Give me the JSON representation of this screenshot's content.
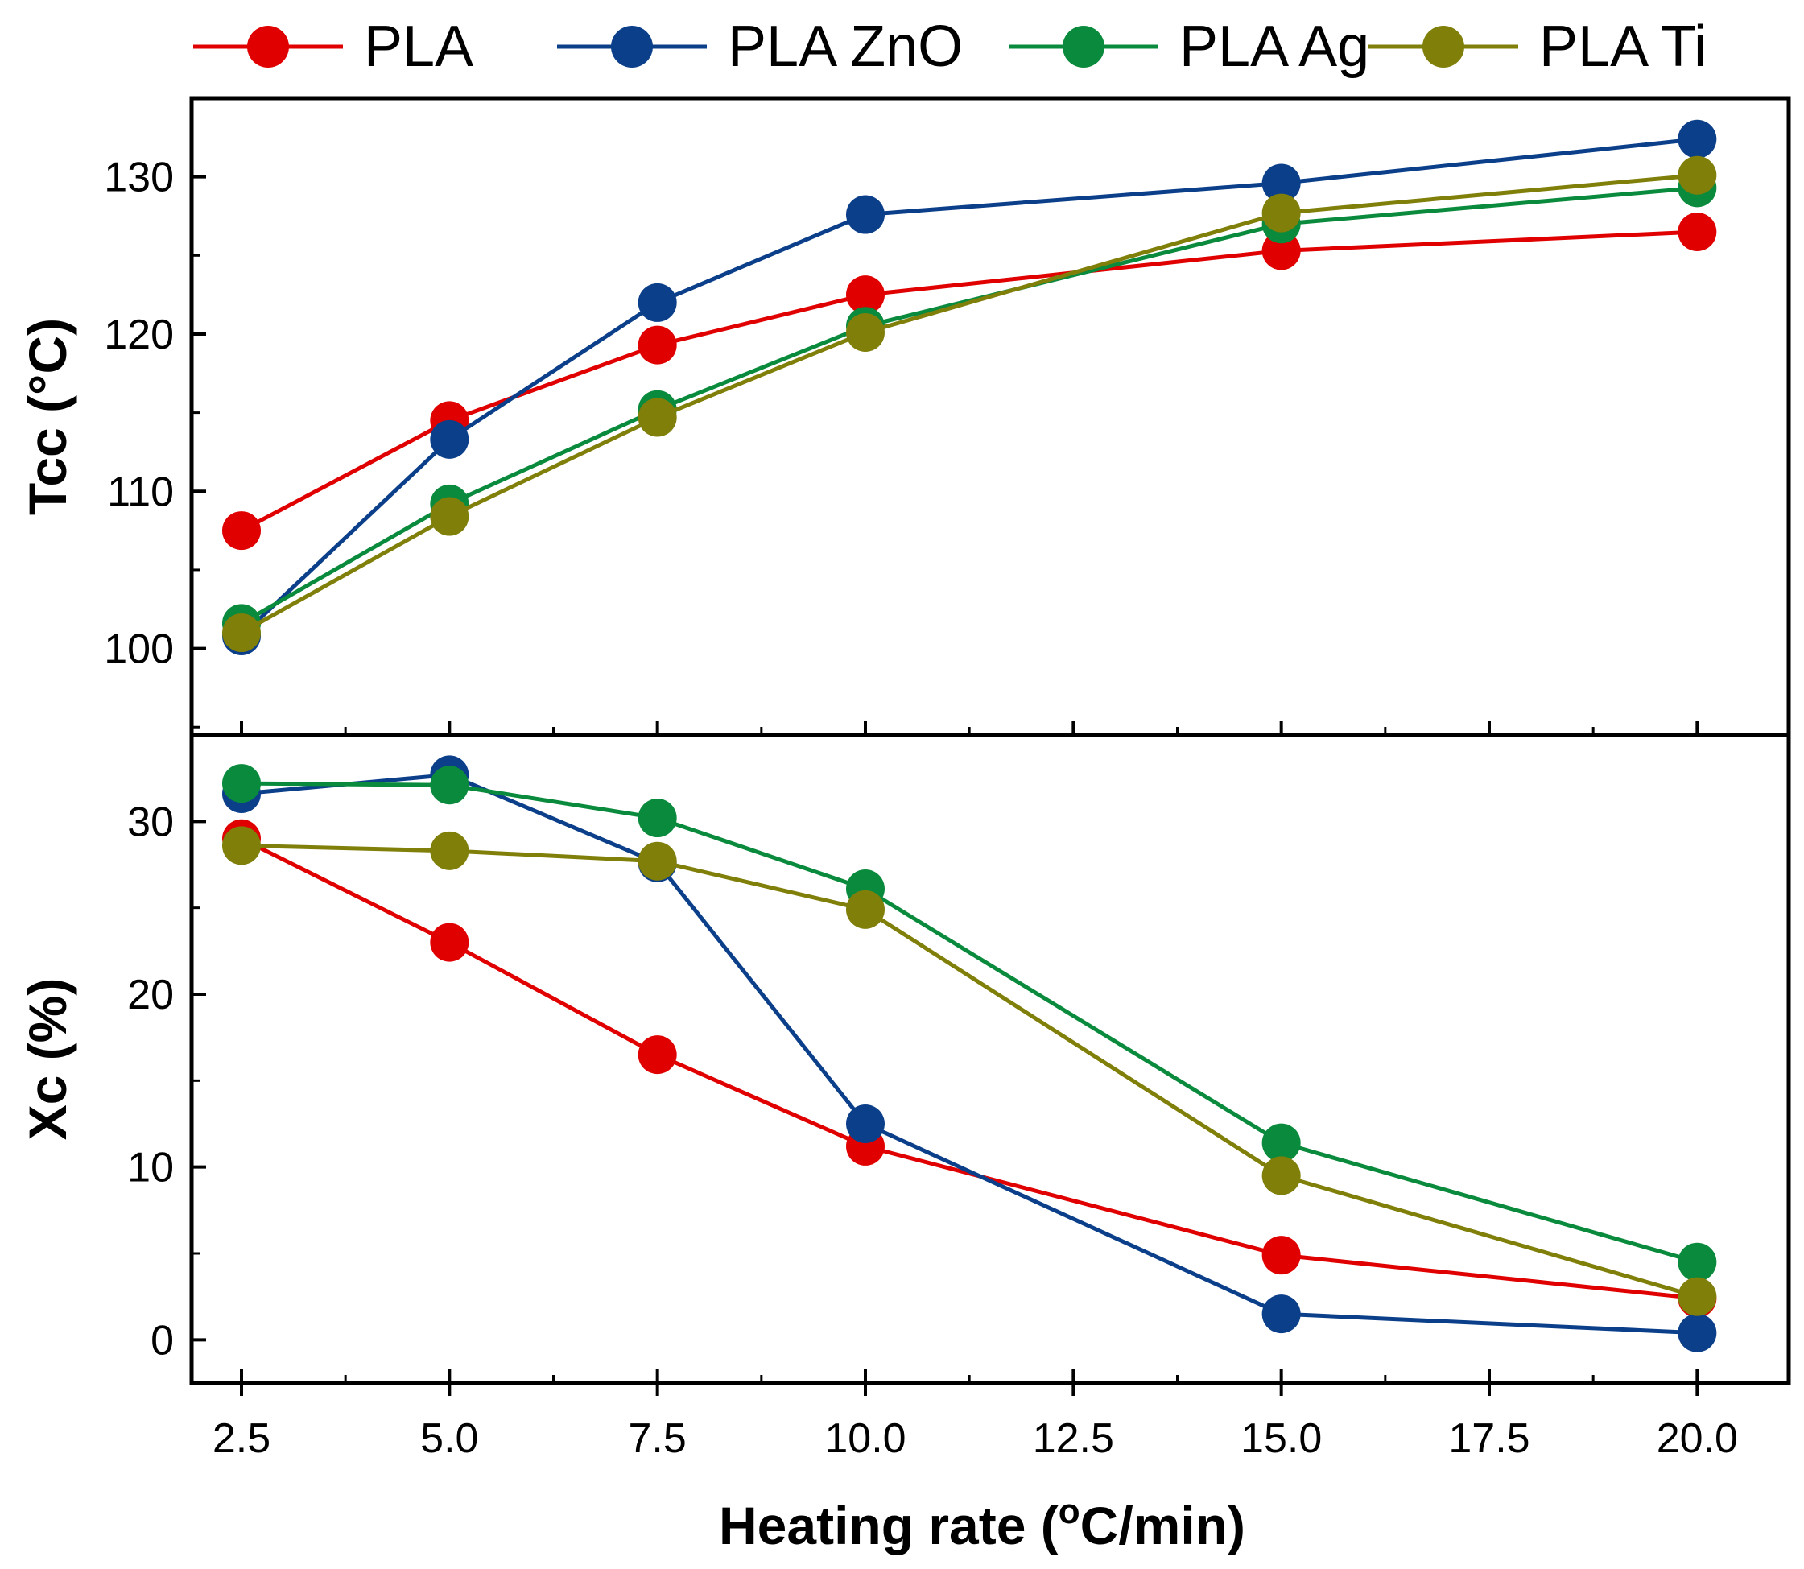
{
  "chart_data": {
    "type": "line",
    "shared_x": {
      "label_prefix": "Heating rate (",
      "label_degree": "o",
      "label_suffix": "C/min)",
      "range": [
        1.9,
        21.1
      ],
      "tick_labels": [
        "2.5",
        "5.0",
        "7.5",
        "10.0",
        "12.5",
        "15.0",
        "17.5",
        "20.0"
      ]
    },
    "x": [
      2.5,
      5.0,
      7.5,
      10.0,
      15.0,
      20.0
    ],
    "legend": {
      "position": "top",
      "entries": [
        {
          "name": "PLA",
          "color": "#e00000"
        },
        {
          "name": "PLA ZnO",
          "color": "#0b3f8a"
        },
        {
          "name": "PLA Ag",
          "color": "#0a8a3c"
        },
        {
          "name": "PLA Ti",
          "color": "#7f7f0a"
        }
      ]
    },
    "panels": [
      {
        "id": "tcc",
        "ylabel": "Tcc (°C)",
        "ylim": [
          94.5,
          135
        ],
        "yticks": [
          100,
          110,
          120,
          130
        ],
        "ytick_labels": [
          "100",
          "110",
          "120",
          "130"
        ],
        "series": [
          {
            "name": "PLA",
            "values": [
              107.5,
              114.5,
              119.3,
              122.5,
              125.3,
              126.5
            ]
          },
          {
            "name": "PLA ZnO",
            "values": [
              100.8,
              113.3,
              122.0,
              127.6,
              129.6,
              132.4
            ]
          },
          {
            "name": "PLA Ag",
            "values": [
              101.6,
              109.2,
              115.2,
              120.5,
              127.0,
              129.3
            ]
          },
          {
            "name": "PLA Ti",
            "values": [
              101.0,
              108.4,
              114.7,
              120.1,
              127.7,
              130.1
            ]
          }
        ]
      },
      {
        "id": "xc",
        "ylabel": "Xc (%)",
        "ylim": [
          -2.5,
          35
        ],
        "yticks": [
          0,
          10,
          20,
          30
        ],
        "ytick_labels": [
          "0",
          "10",
          "20",
          "30"
        ],
        "series": [
          {
            "name": "PLA",
            "values": [
              29.0,
              23.0,
              16.5,
              11.2,
              4.9,
              2.4
            ]
          },
          {
            "name": "PLA ZnO",
            "values": [
              31.6,
              32.7,
              27.6,
              12.5,
              1.5,
              0.4
            ]
          },
          {
            "name": "PLA Ag",
            "values": [
              32.2,
              32.1,
              30.2,
              26.1,
              11.4,
              4.5
            ]
          },
          {
            "name": "PLA Ti",
            "values": [
              28.6,
              28.3,
              27.7,
              24.9,
              9.5,
              2.5
            ]
          }
        ]
      }
    ]
  }
}
